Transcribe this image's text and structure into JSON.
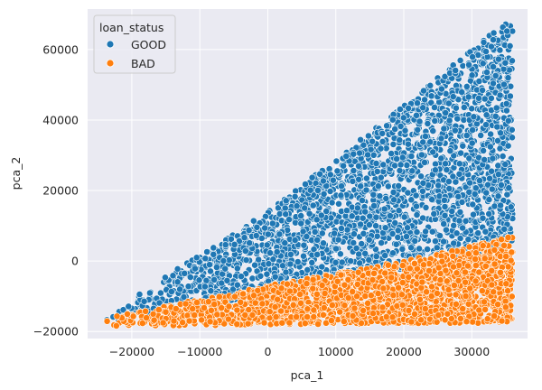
{
  "chart_data": {
    "type": "scatter",
    "xlabel": "pca_1",
    "ylabel": "pca_2",
    "xlim": [
      -26500,
      38200
    ],
    "ylim": [
      -22000,
      71500
    ],
    "x_ticks": [
      -20000,
      -10000,
      0,
      10000,
      20000,
      30000
    ],
    "x_tick_labels": [
      "−20000",
      "−10000",
      "0",
      "10000",
      "20000",
      "30000"
    ],
    "y_ticks": [
      -20000,
      0,
      20000,
      40000,
      60000
    ],
    "y_tick_labels": [
      "−20000",
      "0",
      "20000",
      "40000",
      "60000"
    ],
    "grid": true,
    "legend": {
      "title": "loan_status",
      "placement": "top-left",
      "entries": [
        "GOOD",
        "BAD"
      ]
    },
    "series": [
      {
        "name": "GOOD",
        "color": "#1f77b4",
        "region": {
          "x_range": [
            -24500,
            36000
          ],
          "lower_edge": [
            [
              -24500,
              -18500
            ],
            [
              -5000,
              -11000
            ],
            [
              10000,
              -5000
            ],
            [
              36000,
              2000
            ]
          ],
          "upper_edge": [
            [
              -24500,
              -16000
            ],
            [
              0,
              14000
            ],
            [
              20000,
              44000
            ],
            [
              36000,
              69500
            ]
          ]
        }
      },
      {
        "name": "BAD",
        "color": "#ff7f0e",
        "region": {
          "x_range": [
            -24500,
            36000
          ],
          "lower_edge": [
            [
              -24500,
              -18500
            ],
            [
              36000,
              -17500
            ]
          ],
          "upper_edge": [
            [
              -24500,
              -16500
            ],
            [
              0,
              -7000
            ],
            [
              20000,
              0
            ],
            [
              36000,
              7000
            ]
          ]
        }
      }
    ]
  }
}
